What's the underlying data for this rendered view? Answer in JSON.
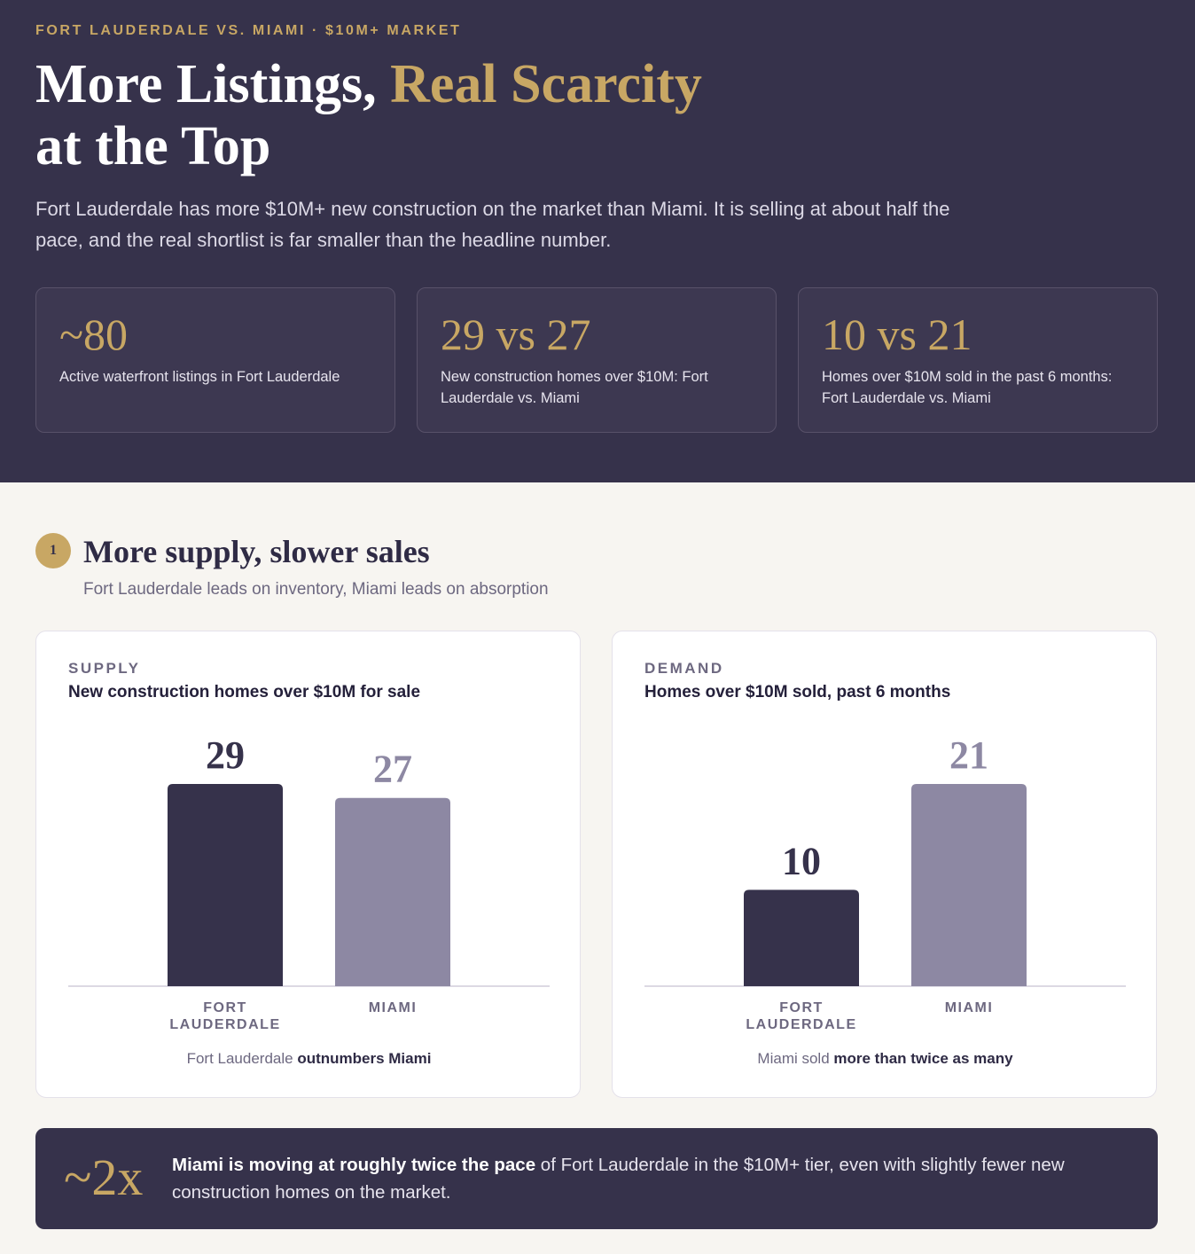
{
  "hero": {
    "eyebrow": "FORT LAUDERDALE VS. MIAMI · $10M+ MARKET",
    "title_part1": "More Listings, ",
    "title_accent": "Real Scarcity",
    "title_part2": "at the Top",
    "intro": "Fort Lauderdale has more $10M+ new construction on the market than Miami. It is selling at about half the pace, and the real shortlist is far smaller than the headline number."
  },
  "stats": [
    {
      "value": "~80",
      "label": "Active waterfront listings in Fort Lauderdale"
    },
    {
      "value": "29 vs 27",
      "label": "New construction homes over $10M: Fort Lauderdale vs. Miami"
    },
    {
      "value": "10 vs 21",
      "label": "Homes over $10M sold in the past 6 months: Fort Lauderdale vs. Miami"
    }
  ],
  "section": {
    "number": "1",
    "title": "More supply, slower sales",
    "subtitle": "Fort Lauderdale leads on inventory, Miami leads on absorption"
  },
  "chart_data": [
    {
      "type": "bar",
      "eyebrow": "SUPPLY",
      "title": "New construction homes over $10M for sale",
      "categories": [
        "FORT LAUDERDALE",
        "MIAMI"
      ],
      "values": [
        29,
        27
      ],
      "colors": [
        "#36324b",
        "#8d88a3"
      ],
      "ylim": [
        0,
        29
      ],
      "caption_pre": "Fort Lauderdale ",
      "caption_bold": "outnumbers Miami"
    },
    {
      "type": "bar",
      "eyebrow": "DEMAND",
      "title": "Homes over $10M sold, past 6 months",
      "categories": [
        "FORT LAUDERDALE",
        "MIAMI"
      ],
      "values": [
        10,
        21
      ],
      "colors": [
        "#36324b",
        "#8d88a3"
      ],
      "ylim": [
        0,
        21
      ],
      "caption_pre": "Miami sold ",
      "caption_bold": "more than twice as many"
    }
  ],
  "callout": {
    "big": "~2x",
    "bold": "Miami is moving at roughly twice the pace",
    "rest": " of Fort Lauderdale in the $10M+ tier, even with slightly fewer new construction homes on the market."
  },
  "colors": {
    "navy": "#36324b",
    "gold": "#c8a764",
    "lavender": "#8d88a3",
    "background": "#f7f5f1"
  }
}
